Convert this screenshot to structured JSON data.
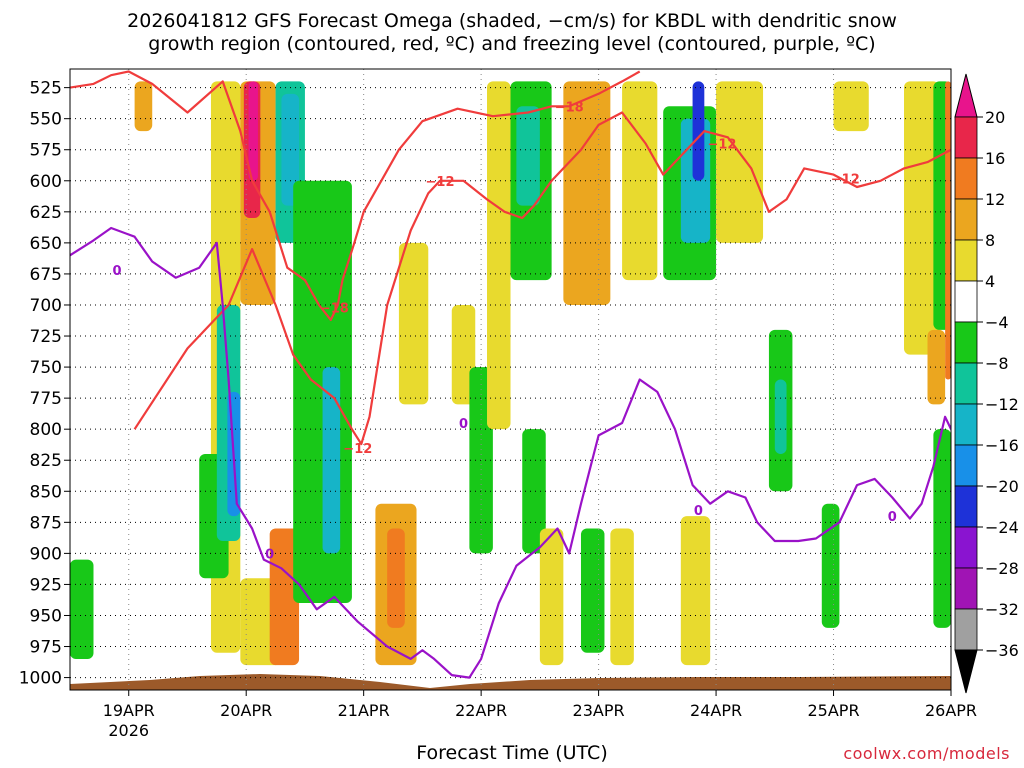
{
  "title": {
    "line1": "2026041812 GFS Forecast Omega (shaded, −cm/s) for KBDL with dendritic snow",
    "line2": "growth region (contoured, red, ºC) and freezing level (contoured, purple, ºC)"
  },
  "xlabel": "Forecast Time (UTC)",
  "credit": "coolwx.com/models",
  "chart_data": {
    "type": "heatmap",
    "title": "2026041812 GFS Forecast Omega (shaded, −cm/s) for KBDL with dendritic snow growth region (contoured, red, ºC) and freezing level (contoured, purple, ºC)",
    "xlabel": "Forecast Time (UTC)",
    "ylabel": "",
    "x_ticks": [
      "19APR",
      "20APR",
      "21APR",
      "22APR",
      "23APR",
      "24APR",
      "25APR",
      "26APR"
    ],
    "x_tick_year": "2026",
    "xlim_days": [
      -0.5,
      7.0
    ],
    "y_ticks": [
      525,
      550,
      575,
      600,
      625,
      650,
      675,
      700,
      725,
      750,
      775,
      800,
      825,
      850,
      875,
      900,
      925,
      950,
      975,
      1000
    ],
    "ylim": [
      510,
      1010
    ],
    "y_inverted": true,
    "grid": true,
    "colorbar": {
      "tick_labels": [
        "20",
        "16",
        "12",
        "8",
        "4",
        "−4",
        "−8",
        "−12",
        "−16",
        "−20",
        "−24",
        "−28",
        "−32",
        "−36"
      ],
      "bins": [
        {
          "range": "16 to 20",
          "color": "#e8264a"
        },
        {
          "range": "12 to 16",
          "color": "#f07b20"
        },
        {
          "range": "8 to 12",
          "color": "#eba61f"
        },
        {
          "range": "4 to 8",
          "color": "#e8da2e"
        },
        {
          "range": "-4 to 4",
          "color": "#ffffff"
        },
        {
          "range": "-8 to -4",
          "color": "#18c818"
        },
        {
          "range": "-12 to -8",
          "color": "#10c49a"
        },
        {
          "range": "-16 to -12",
          "color": "#16b4c8"
        },
        {
          "range": "-20 to -16",
          "color": "#1890e8"
        },
        {
          "range": "-24 to -20",
          "color": "#1e32d8"
        },
        {
          "range": "-28 to -24",
          "color": "#8a14d0"
        },
        {
          "range": "-32 to -28",
          "color": "#a014b4"
        },
        {
          "range": "-36 to -32",
          "color": "#a0a0a0"
        }
      ],
      "over_color": "#e8148c",
      "under_color": "#000000"
    },
    "omega_regions": [
      {
        "x": [
          -0.5,
          -0.3
        ],
        "p": [
          905,
          985
        ],
        "color": "#18c818"
      },
      {
        "x": [
          0.05,
          0.2
        ],
        "p": [
          520,
          560
        ],
        "color": "#eba61f"
      },
      {
        "x": [
          0.7,
          0.95
        ],
        "p": [
          520,
          980
        ],
        "color": "#e8da2e"
      },
      {
        "x": [
          0.6,
          0.85
        ],
        "p": [
          820,
          920
        ],
        "color": "#18c818"
      },
      {
        "x": [
          0.75,
          0.95
        ],
        "p": [
          700,
          890
        ],
        "color": "#10c49a"
      },
      {
        "x": [
          0.84,
          0.95
        ],
        "p": [
          770,
          870
        ],
        "color": "#1890e8"
      },
      {
        "x": [
          0.95,
          1.25
        ],
        "p": [
          520,
          700
        ],
        "color": "#eba61f"
      },
      {
        "x": [
          0.98,
          1.12
        ],
        "p": [
          520,
          630
        ],
        "color": "#e8264a"
      },
      {
        "x": [
          1.02,
          1.1
        ],
        "p": [
          520,
          600
        ],
        "color": "#e8148c"
      },
      {
        "x": [
          0.95,
          1.3
        ],
        "p": [
          920,
          990
        ],
        "color": "#e8da2e"
      },
      {
        "x": [
          1.25,
          1.5
        ],
        "p": [
          520,
          650
        ],
        "color": "#10c49a"
      },
      {
        "x": [
          1.3,
          1.45
        ],
        "p": [
          530,
          620
        ],
        "color": "#16b4c8"
      },
      {
        "x": [
          1.2,
          1.45
        ],
        "p": [
          880,
          990
        ],
        "color": "#f07b20"
      },
      {
        "x": [
          1.4,
          1.9
        ],
        "p": [
          600,
          940
        ],
        "color": "#18c818"
      },
      {
        "x": [
          1.65,
          1.8
        ],
        "p": [
          750,
          900
        ],
        "color": "#16b4c8"
      },
      {
        "x": [
          2.1,
          2.45
        ],
        "p": [
          860,
          990
        ],
        "color": "#eba61f"
      },
      {
        "x": [
          2.2,
          2.35
        ],
        "p": [
          880,
          960
        ],
        "color": "#f07b20"
      },
      {
        "x": [
          2.3,
          2.55
        ],
        "p": [
          650,
          780
        ],
        "color": "#e8da2e"
      },
      {
        "x": [
          2.75,
          2.95
        ],
        "p": [
          700,
          780
        ],
        "color": "#e8da2e"
      },
      {
        "x": [
          2.9,
          3.1
        ],
        "p": [
          750,
          900
        ],
        "color": "#18c818"
      },
      {
        "x": [
          3.05,
          3.25
        ],
        "p": [
          520,
          800
        ],
        "color": "#e8da2e"
      },
      {
        "x": [
          3.25,
          3.6
        ],
        "p": [
          520,
          680
        ],
        "color": "#18c818"
      },
      {
        "x": [
          3.3,
          3.5
        ],
        "p": [
          540,
          620
        ],
        "color": "#10c49a"
      },
      {
        "x": [
          3.35,
          3.55
        ],
        "p": [
          800,
          900
        ],
        "color": "#18c818"
      },
      {
        "x": [
          3.5,
          3.7
        ],
        "p": [
          880,
          990
        ],
        "color": "#e8da2e"
      },
      {
        "x": [
          3.7,
          4.1
        ],
        "p": [
          520,
          700
        ],
        "color": "#eba61f"
      },
      {
        "x": [
          3.85,
          4.05
        ],
        "p": [
          880,
          980
        ],
        "color": "#18c818"
      },
      {
        "x": [
          4.2,
          4.5
        ],
        "p": [
          520,
          680
        ],
        "color": "#e8da2e"
      },
      {
        "x": [
          4.1,
          4.3
        ],
        "p": [
          880,
          990
        ],
        "color": "#e8da2e"
      },
      {
        "x": [
          4.55,
          5.0
        ],
        "p": [
          540,
          680
        ],
        "color": "#18c818"
      },
      {
        "x": [
          4.7,
          4.95
        ],
        "p": [
          550,
          650
        ],
        "color": "#16b4c8"
      },
      {
        "x": [
          4.8,
          4.9
        ],
        "p": [
          520,
          600
        ],
        "color": "#1e32d8"
      },
      {
        "x": [
          4.7,
          4.95
        ],
        "p": [
          870,
          990
        ],
        "color": "#e8da2e"
      },
      {
        "x": [
          5.0,
          5.4
        ],
        "p": [
          520,
          650
        ],
        "color": "#e8da2e"
      },
      {
        "x": [
          5.45,
          5.65
        ],
        "p": [
          720,
          850
        ],
        "color": "#18c818"
      },
      {
        "x": [
          5.5,
          5.6
        ],
        "p": [
          760,
          820
        ],
        "color": "#10c49a"
      },
      {
        "x": [
          5.9,
          6.05
        ],
        "p": [
          860,
          960
        ],
        "color": "#18c818"
      },
      {
        "x": [
          6.0,
          6.3
        ],
        "p": [
          520,
          560
        ],
        "color": "#e8da2e"
      },
      {
        "x": [
          6.6,
          6.9
        ],
        "p": [
          520,
          740
        ],
        "color": "#e8da2e"
      },
      {
        "x": [
          6.8,
          6.95
        ],
        "p": [
          720,
          780
        ],
        "color": "#eba61f"
      },
      {
        "x": [
          6.85,
          7.0
        ],
        "p": [
          520,
          720
        ],
        "color": "#18c818"
      },
      {
        "x": [
          6.85,
          7.0
        ],
        "p": [
          800,
          960
        ],
        "color": "#18c818"
      },
      {
        "x": [
          6.95,
          7.0
        ],
        "p": [
          520,
          760
        ],
        "color": "#f07b20"
      }
    ],
    "contours": [
      {
        "name": "-18",
        "color": "#f03c3c",
        "label_positions": [
          {
            "x": 1.75,
            "p": 702
          },
          {
            "x": 3.75,
            "p": 540
          }
        ],
        "points": [
          [
            -0.5,
            525
          ],
          [
            -0.3,
            522
          ],
          [
            -0.15,
            515
          ],
          [
            0,
            512
          ],
          [
            0.2,
            522
          ],
          [
            0.5,
            545
          ],
          [
            0.8,
            520
          ],
          [
            0.95,
            560
          ],
          [
            1.05,
            600
          ],
          [
            1.2,
            625
          ],
          [
            1.35,
            670
          ],
          [
            1.5,
            680
          ],
          [
            1.62,
            700
          ],
          [
            1.72,
            712
          ],
          [
            1.78,
            700
          ],
          [
            1.82,
            680
          ],
          [
            1.92,
            650
          ],
          [
            2.0,
            625
          ],
          [
            2.15,
            600
          ],
          [
            2.3,
            575
          ],
          [
            2.5,
            552
          ],
          [
            2.8,
            542
          ],
          [
            3.1,
            548
          ],
          [
            3.4,
            545
          ],
          [
            3.6,
            540
          ],
          [
            3.75,
            540
          ],
          [
            4.0,
            530
          ],
          [
            4.2,
            520
          ],
          [
            4.35,
            512
          ]
        ]
      },
      {
        "name": "-12",
        "color": "#f03c3c",
        "label_positions": [
          {
            "x": 1.95,
            "p": 815
          },
          {
            "x": 2.65,
            "p": 600
          },
          {
            "x": 5.05,
            "p": 570
          },
          {
            "x": 6.1,
            "p": 598
          }
        ],
        "points": [
          [
            0.05,
            800
          ],
          [
            0.5,
            735
          ],
          [
            0.85,
            700
          ],
          [
            1.05,
            655
          ],
          [
            1.25,
            700
          ],
          [
            1.4,
            740
          ],
          [
            1.55,
            760
          ],
          [
            1.75,
            775
          ],
          [
            1.9,
            800
          ],
          [
            1.98,
            812
          ],
          [
            2.05,
            790
          ],
          [
            2.2,
            700
          ],
          [
            2.4,
            640
          ],
          [
            2.55,
            610
          ],
          [
            2.65,
            600
          ],
          [
            2.85,
            600
          ],
          [
            3.05,
            615
          ],
          [
            3.2,
            625
          ],
          [
            3.35,
            630
          ],
          [
            3.45,
            620
          ],
          [
            3.6,
            600
          ],
          [
            3.85,
            575
          ],
          [
            4.0,
            555
          ],
          [
            4.2,
            545
          ],
          [
            4.4,
            570
          ],
          [
            4.55,
            595
          ],
          [
            4.75,
            575
          ],
          [
            4.9,
            560
          ],
          [
            5.1,
            565
          ],
          [
            5.3,
            590
          ],
          [
            5.45,
            625
          ],
          [
            5.6,
            615
          ],
          [
            5.75,
            590
          ],
          [
            6.0,
            595
          ],
          [
            6.2,
            605
          ],
          [
            6.4,
            600
          ],
          [
            6.6,
            590
          ],
          [
            6.8,
            585
          ],
          [
            7.0,
            575
          ]
        ]
      },
      {
        "name": "0",
        "color": "#9a12c8",
        "label_positions": [
          {
            "x": -0.1,
            "p": 672
          },
          {
            "x": 1.2,
            "p": 900
          },
          {
            "x": 2.85,
            "p": 795
          },
          {
            "x": 4.85,
            "p": 865
          },
          {
            "x": 6.5,
            "p": 870
          }
        ],
        "points": [
          [
            -0.5,
            660
          ],
          [
            -0.3,
            648
          ],
          [
            -0.15,
            638
          ],
          [
            0.05,
            645
          ],
          [
            0.2,
            665
          ],
          [
            0.4,
            678
          ],
          [
            0.6,
            670
          ],
          [
            0.75,
            650
          ],
          [
            0.8,
            700
          ],
          [
            0.85,
            760
          ],
          [
            0.92,
            860
          ],
          [
            1.05,
            880
          ],
          [
            1.15,
            905
          ],
          [
            1.3,
            912
          ],
          [
            1.45,
            925
          ],
          [
            1.6,
            945
          ],
          [
            1.75,
            935
          ],
          [
            1.95,
            955
          ],
          [
            2.2,
            975
          ],
          [
            2.4,
            985
          ],
          [
            2.5,
            978
          ],
          [
            2.6,
            985
          ],
          [
            2.75,
            998
          ],
          [
            2.9,
            1000
          ],
          [
            3.0,
            985
          ],
          [
            3.15,
            940
          ],
          [
            3.3,
            910
          ],
          [
            3.5,
            895
          ],
          [
            3.65,
            880
          ],
          [
            3.75,
            900
          ],
          [
            3.85,
            860
          ],
          [
            4.0,
            805
          ],
          [
            4.2,
            795
          ],
          [
            4.35,
            760
          ],
          [
            4.5,
            770
          ],
          [
            4.65,
            800
          ],
          [
            4.8,
            845
          ],
          [
            4.95,
            860
          ],
          [
            5.1,
            850
          ],
          [
            5.25,
            855
          ],
          [
            5.35,
            875
          ],
          [
            5.5,
            890
          ],
          [
            5.7,
            890
          ],
          [
            5.85,
            888
          ],
          [
            6.05,
            875
          ],
          [
            6.2,
            845
          ],
          [
            6.35,
            840
          ],
          [
            6.5,
            855
          ],
          [
            6.65,
            872
          ],
          [
            6.75,
            860
          ],
          [
            6.85,
            830
          ],
          [
            6.95,
            790
          ],
          [
            7.0,
            800
          ]
        ]
      }
    ]
  }
}
